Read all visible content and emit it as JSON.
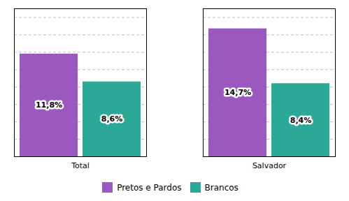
{
  "chart_data": {
    "type": "bar",
    "categories": [
      "Total",
      "Salvador"
    ],
    "series": [
      {
        "name": "Pretos e Pardos",
        "color": "#9B59C0",
        "values": [
          11.8,
          14.7
        ],
        "value_labels": [
          "11,8%",
          "14,7%"
        ]
      },
      {
        "name": "Brancos",
        "color": "#2BA898",
        "values": [
          8.6,
          8.4
        ],
        "value_labels": [
          "8,6%",
          "8,4%"
        ]
      }
    ],
    "ylim": [
      0,
      17
    ],
    "yticks": [
      0,
      2,
      4,
      6,
      8,
      10,
      12,
      14,
      16
    ],
    "grid": true,
    "legend": "bottom",
    "data_labels": true,
    "tick_labels": "x"
  }
}
